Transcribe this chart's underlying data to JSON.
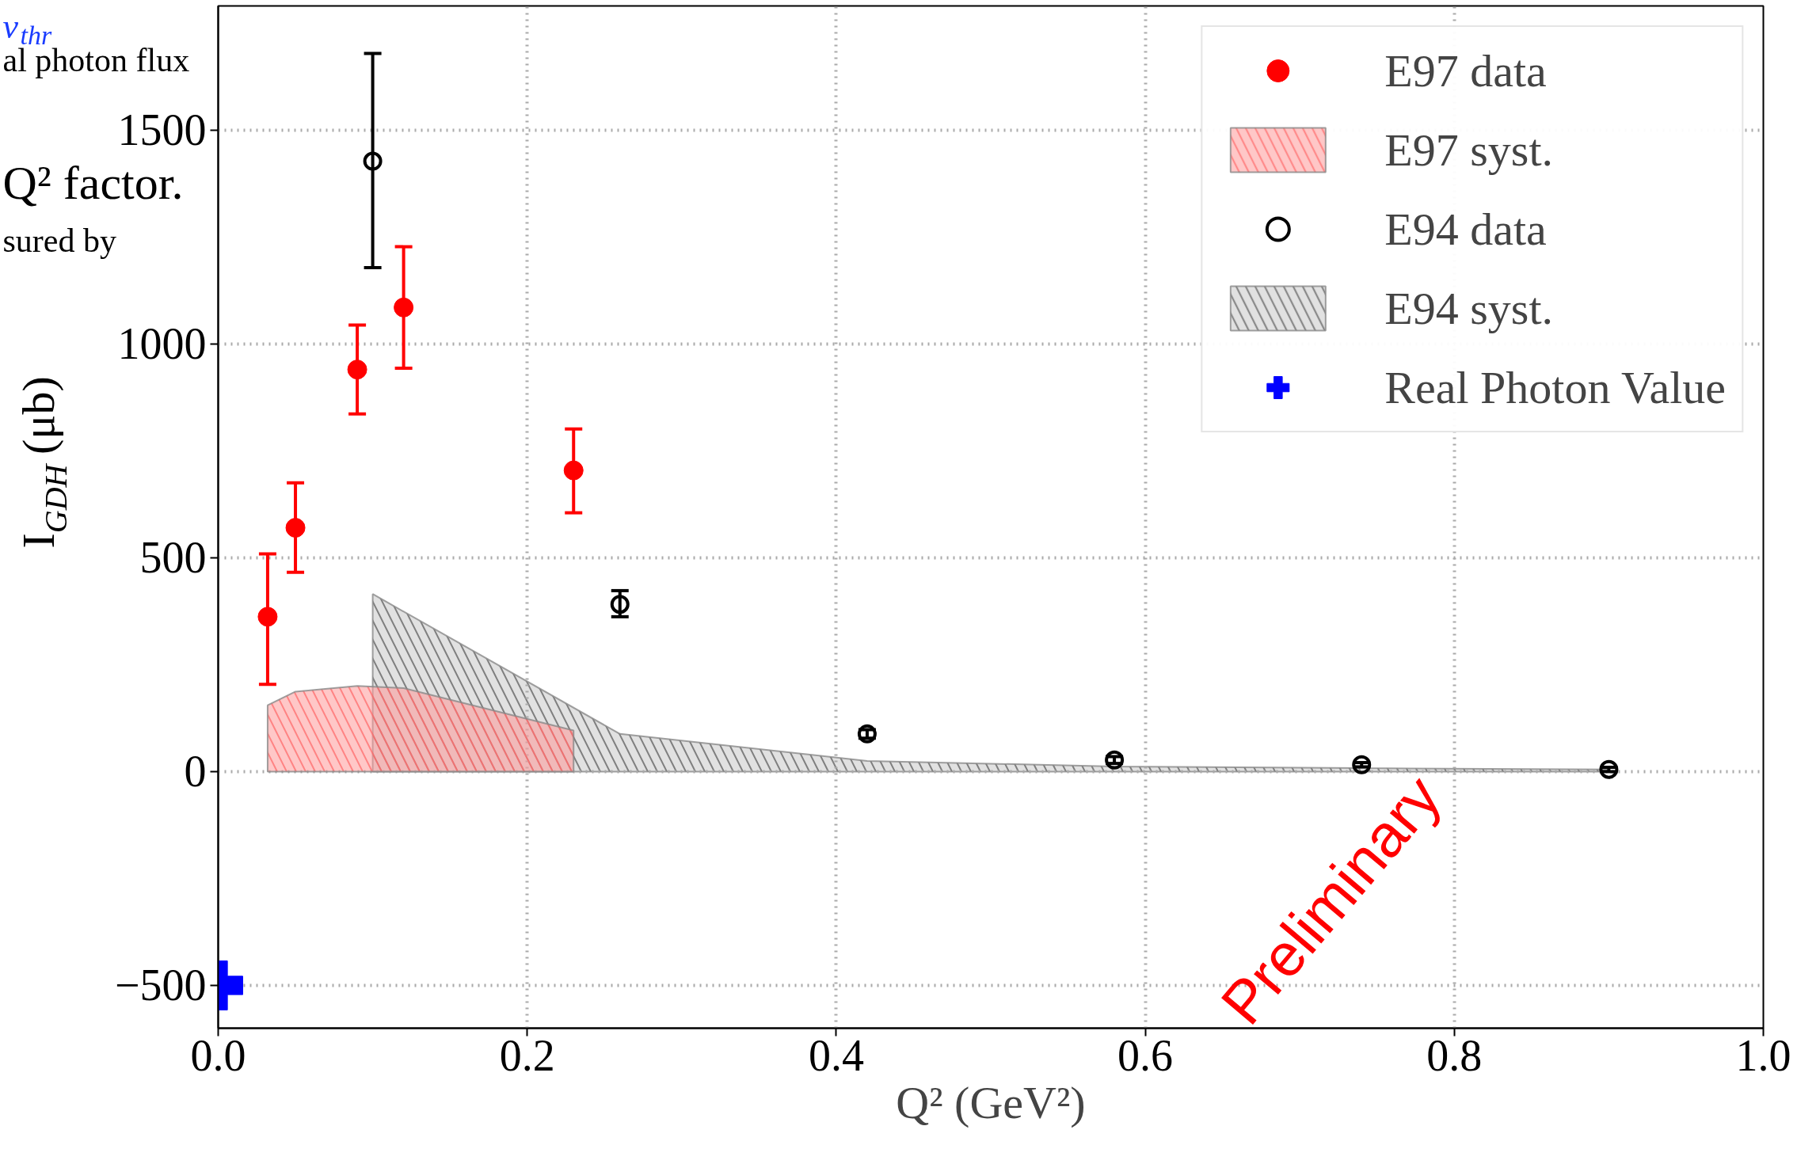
{
  "chart_data": {
    "type": "scatter",
    "xlabel": "Q² (GeV²)",
    "ylabel": "I$_{GDH}$ (μb)",
    "xlim": [
      0,
      1.0
    ],
    "ylim": [
      -600,
      1790
    ],
    "xticks": [
      {
        "value": 0,
        "label": "0.0"
      },
      0.2,
      0.4,
      0.6,
      0.8,
      {
        "value": 1.0,
        "label": "1.0"
      }
    ],
    "yticks": [
      {
        "value": -500,
        "label": "−500"
      },
      0,
      500,
      1000,
      1500
    ],
    "grid": true,
    "legend": "top right",
    "series": [
      {
        "name": "E97 data",
        "marker": "circle",
        "color": "#ff0000",
        "x": [
          0.032,
          0.05,
          0.09,
          0.12,
          0.23
        ],
        "values": [
          362,
          570,
          940,
          1085,
          704
        ],
        "errors": [
          [
            204,
            509
          ],
          [
            466,
            675
          ],
          [
            836,
            1044
          ],
          [
            943,
            1227
          ],
          [
            605,
            801
          ]
        ]
      },
      {
        "name": "E97 syst.",
        "type": "area",
        "color": "#ff9999",
        "x": [
          0.032,
          0.05,
          0.09,
          0.12,
          0.23
        ],
        "values": [
          155,
          187,
          200,
          195,
          96
        ]
      },
      {
        "name": "E94 data",
        "marker": "circle_open",
        "color": "#000000",
        "x": [
          0.1,
          0.26,
          0.42,
          0.58,
          0.74,
          0.9
        ],
        "values": [
          1427,
          391,
          88,
          27,
          16,
          5
        ],
        "errors": [
          [
            1178,
            1679
          ],
          [
            362,
            423
          ],
          [
            78,
            98
          ],
          [
            19,
            35
          ],
          [
            11,
            21
          ],
          [
            0,
            10
          ]
        ]
      },
      {
        "name": "E94 syst.",
        "type": "area",
        "color": "#c8c8c8",
        "x": [
          0.1,
          0.26,
          0.42,
          0.58,
          0.74,
          0.9
        ],
        "values": [
          415,
          88,
          25,
          12,
          8,
          5
        ]
      },
      {
        "name": "Real Photon Value",
        "marker": "cross",
        "color": "#0000ff",
        "x": [
          0
        ],
        "values": [
          -500
        ]
      }
    ],
    "annotations": [
      "Preliminary",
      "ν$_{thr}$",
      "al photon flux",
      "Q² factor.",
      "sured by"
    ]
  }
}
